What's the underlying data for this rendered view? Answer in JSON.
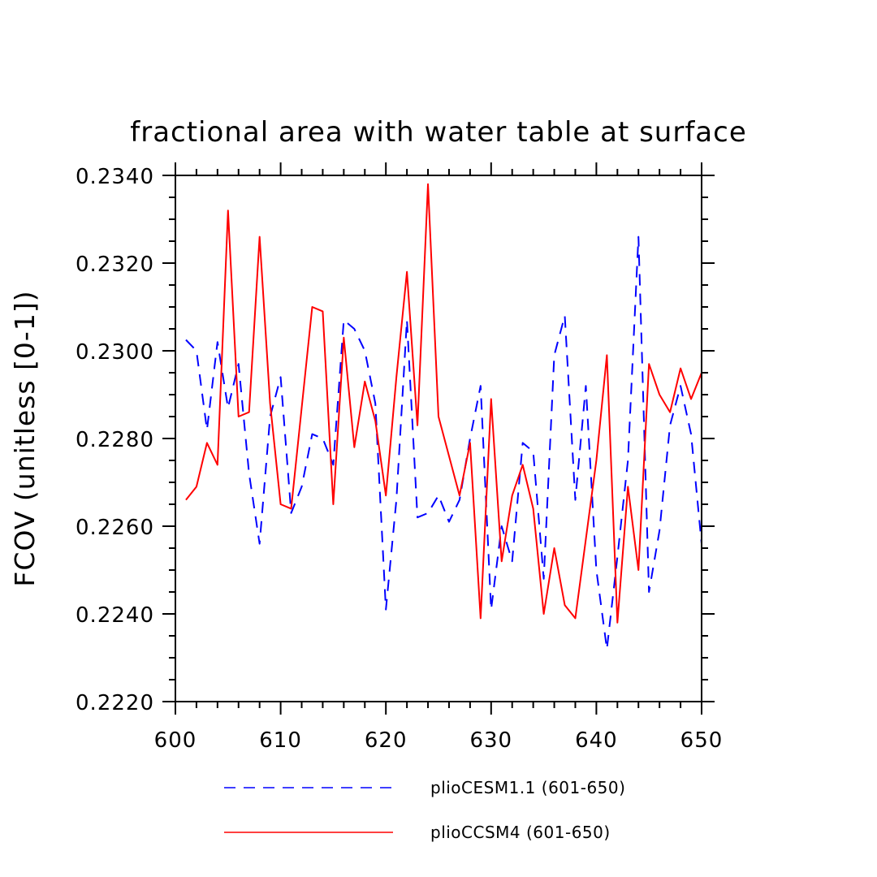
{
  "chart_data": {
    "type": "line",
    "title": "fractional area with water table at surface",
    "xlabel": "",
    "ylabel": "FCOV  (unitless [0-1])",
    "xlim": [
      600,
      650
    ],
    "ylim": [
      0.222,
      0.234
    ],
    "x_ticks": [
      "600",
      "610",
      "620",
      "630",
      "640",
      "650"
    ],
    "y_ticks": [
      "0.2220",
      "0.2240",
      "0.2260",
      "0.2280",
      "0.2300",
      "0.2320",
      "0.2340"
    ],
    "x": [
      601,
      602,
      603,
      604,
      605,
      606,
      607,
      608,
      609,
      610,
      611,
      612,
      613,
      614,
      615,
      616,
      617,
      618,
      619,
      620,
      621,
      622,
      623,
      624,
      625,
      626,
      627,
      628,
      629,
      630,
      631,
      632,
      633,
      634,
      635,
      636,
      637,
      638,
      639,
      640,
      641,
      642,
      643,
      644,
      645,
      646,
      647,
      648,
      649,
      650
    ],
    "legend_position": "bottom",
    "series": [
      {
        "name": "plioCESM1.1 (601-650)",
        "color": "#0000ff",
        "style": "dashed",
        "values": [
          0.23025,
          0.23,
          0.2282,
          0.2302,
          0.2287,
          0.2297,
          0.2272,
          0.2256,
          0.2285,
          0.2294,
          0.2263,
          0.2269,
          0.2281,
          0.228,
          0.2274,
          0.2307,
          0.2305,
          0.23,
          0.2288,
          0.2241,
          0.2266,
          0.2307,
          0.2262,
          0.2263,
          0.2267,
          0.2261,
          0.2266,
          0.228,
          0.2292,
          0.2241,
          0.226,
          0.2252,
          0.2279,
          0.2277,
          0.2248,
          0.2299,
          0.2308,
          0.2266,
          0.2292,
          0.225,
          0.2232,
          0.2253,
          0.2275,
          0.2326,
          0.2245,
          0.2259,
          0.2283,
          0.2292,
          0.2281,
          0.2256
        ]
      },
      {
        "name": "plioCCSM4 (601-650)",
        "color": "#ff0000",
        "style": "solid",
        "values": [
          0.2266,
          0.2269,
          0.2279,
          0.2274,
          0.2332,
          0.2285,
          0.2286,
          0.2326,
          0.2288,
          0.2265,
          0.2264,
          0.2287,
          0.231,
          0.2309,
          0.2265,
          0.2303,
          0.2278,
          0.2293,
          0.2284,
          0.2267,
          0.2294,
          0.2318,
          0.2283,
          0.2338,
          0.2285,
          0.2276,
          0.2267,
          0.2279,
          0.2239,
          0.2289,
          0.2252,
          0.2267,
          0.2274,
          0.2264,
          0.224,
          0.2255,
          0.2242,
          0.2239,
          0.2257,
          0.2275,
          0.2299,
          0.2238,
          0.2269,
          0.225,
          0.2297,
          0.229,
          0.2286,
          0.2296,
          0.2289,
          0.2295
        ]
      }
    ]
  }
}
